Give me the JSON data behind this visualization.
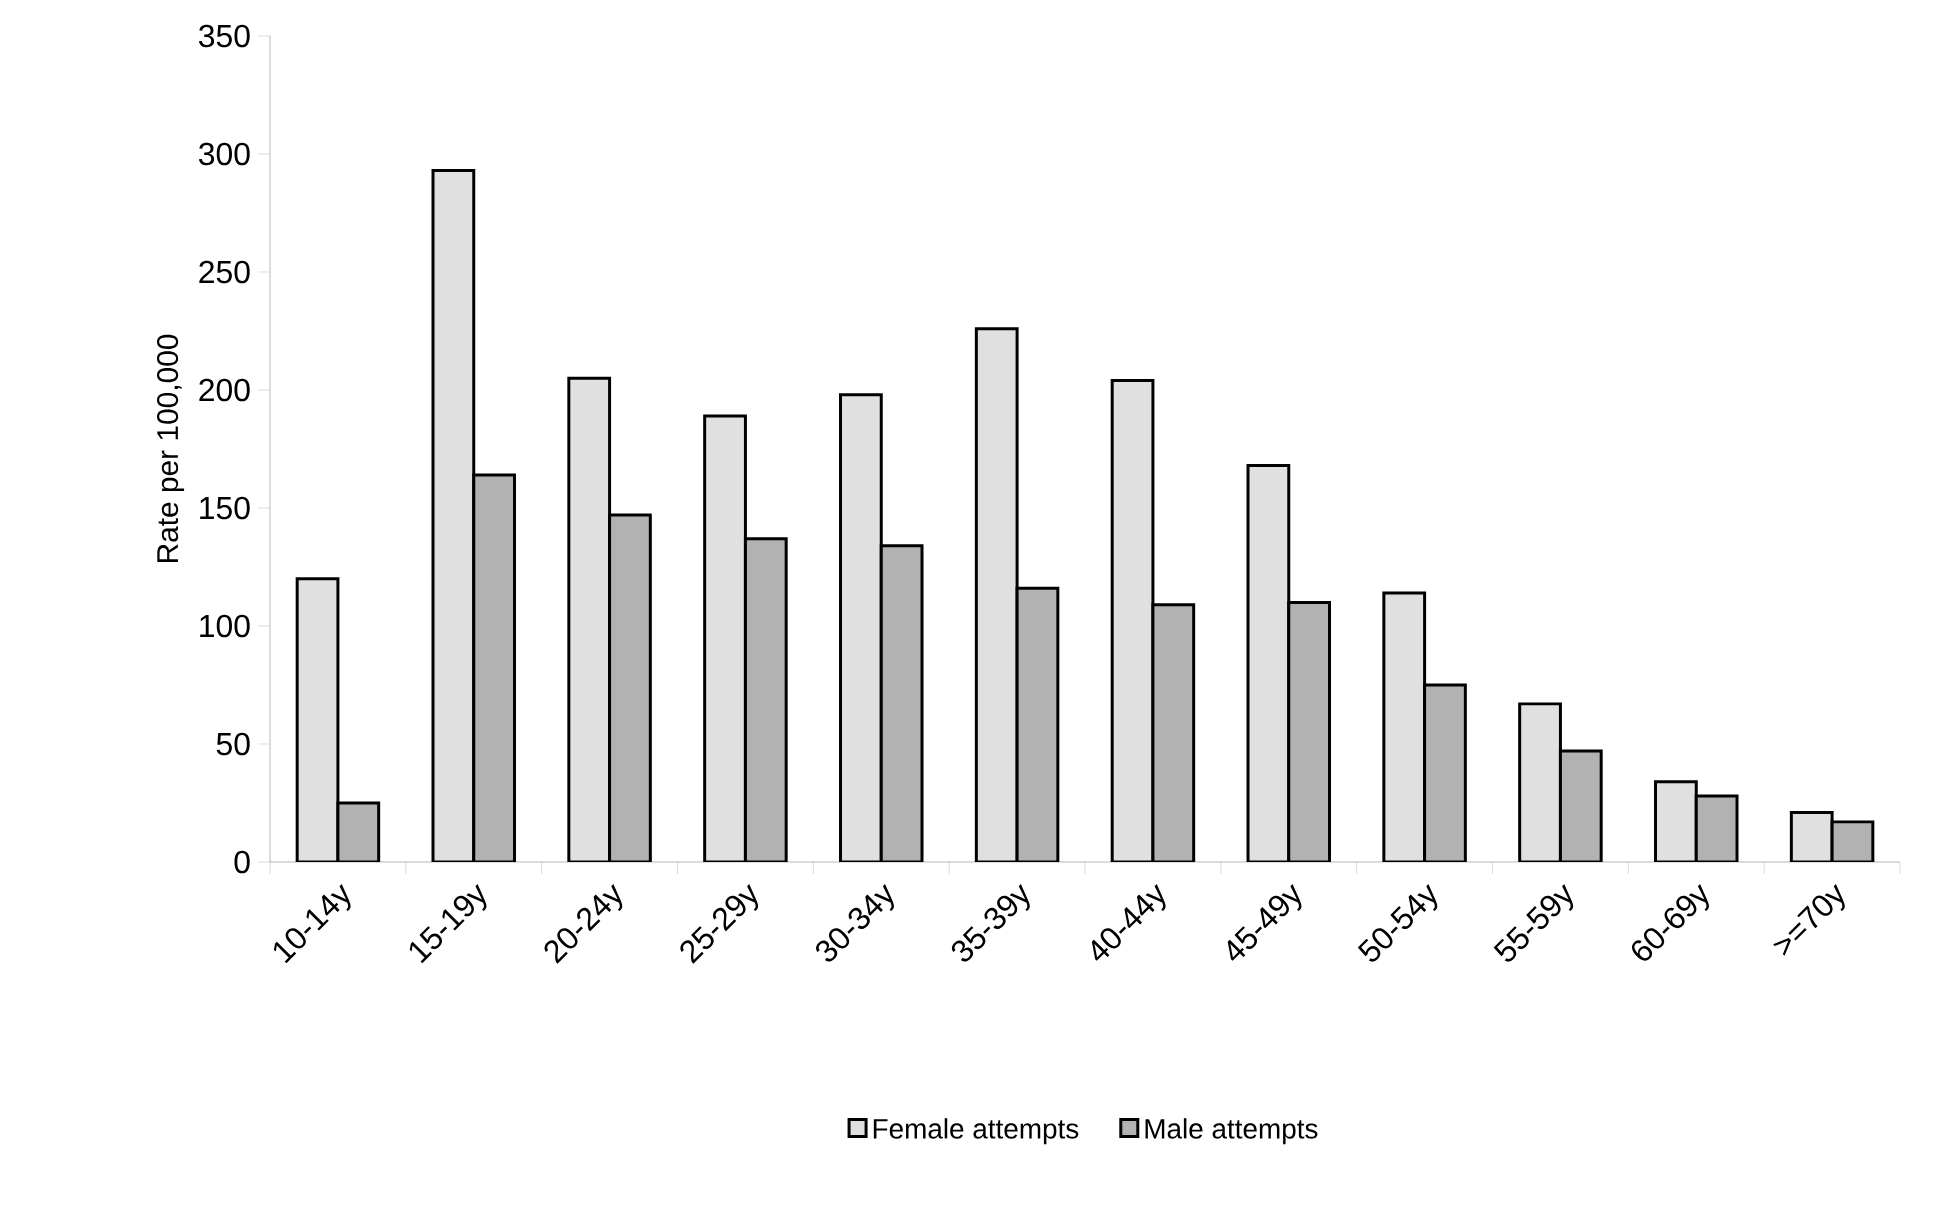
{
  "chart_data": {
    "type": "bar",
    "ylabel": "Rate per 100,000",
    "categories": [
      "10-14y",
      "15-19y",
      "20-24y",
      "25-29y",
      "30-34y",
      "35-39y",
      "40-44y",
      "45-49y",
      "50-54y",
      "55-59y",
      "60-69y",
      ">=70y"
    ],
    "series": [
      {
        "name": "Female attempts",
        "color": "#e0e0e0",
        "values": [
          120,
          293,
          205,
          189,
          198,
          226,
          204,
          168,
          114,
          67,
          34,
          21
        ]
      },
      {
        "name": "Male attempts",
        "color": "#b2b2b2",
        "values": [
          25,
          164,
          147,
          137,
          134,
          116,
          109,
          110,
          75,
          47,
          28,
          17
        ]
      }
    ],
    "ylim": [
      0,
      350
    ],
    "yticks": [
      0,
      50,
      100,
      150,
      200,
      250,
      300,
      350
    ],
    "legend": "bottom"
  }
}
